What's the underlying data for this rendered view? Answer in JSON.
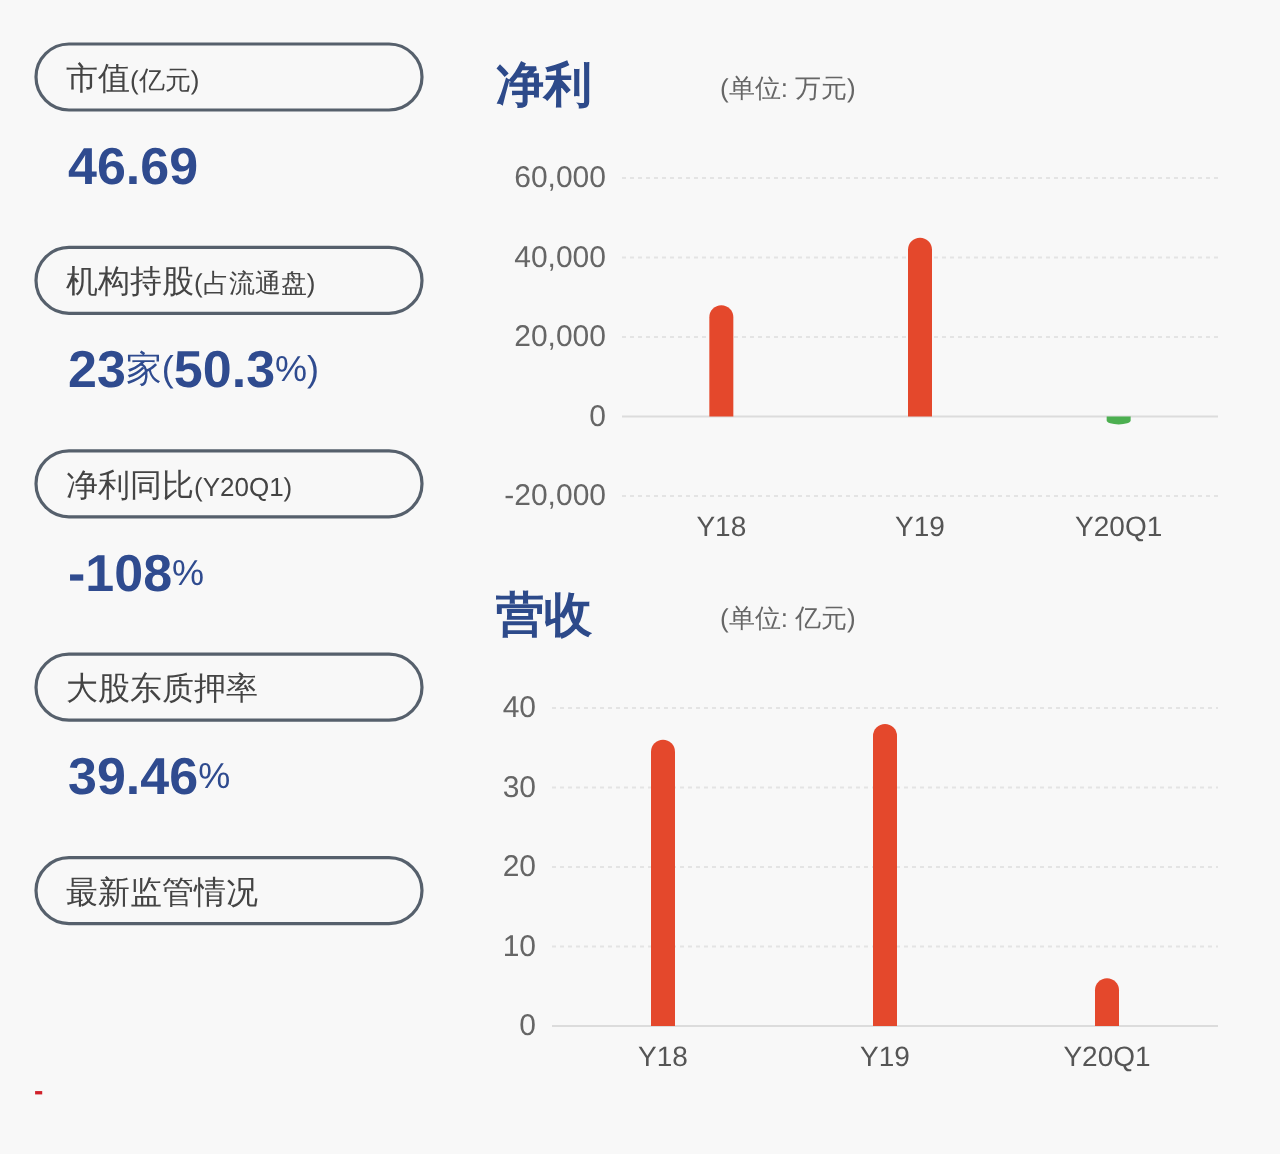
{
  "chart_data": [
    {
      "type": "other",
      "categories": [
        "市值(亿元)",
        "机构持股(占流通盘)",
        "净利同比(Y20Q1)",
        "大股东质押率",
        "最新监管情况"
      ],
      "value_labels": [
        "46.69",
        "23家(50.3%)",
        "-108%",
        "39.46%",
        null
      ],
      "annotations": [
        "-"
      ]
    },
    {
      "type": "bar",
      "title": "净利",
      "subtitle": "(单位: 万元)",
      "categories": [
        "Y18",
        "Y19",
        "Y20Q1"
      ],
      "values": [
        28000,
        45000,
        -2000
      ],
      "colors": [
        "#e4482c",
        "#e4482c",
        "#4caf50"
      ],
      "ylim": [
        -20000,
        60000
      ],
      "yticks": [
        {
          "value": -20000,
          "label": "-20,000"
        },
        0,
        {
          "value": 20000,
          "label": "20,000"
        },
        {
          "value": 40000,
          "label": "40,000"
        },
        {
          "value": 60000,
          "label": "60,000"
        }
      ],
      "grid": "y"
    },
    {
      "type": "bar",
      "title": "营收",
      "subtitle": "(单位: 亿元)",
      "categories": [
        "Y18",
        "Y19",
        "Y20Q1"
      ],
      "values": [
        36,
        38,
        6
      ],
      "colors": [
        "#e4482c",
        "#e4482c",
        "#e4482c"
      ],
      "ylim": [
        0,
        40
      ],
      "yticks": [
        0,
        10,
        20,
        30,
        40
      ],
      "grid": "y"
    }
  ]
}
